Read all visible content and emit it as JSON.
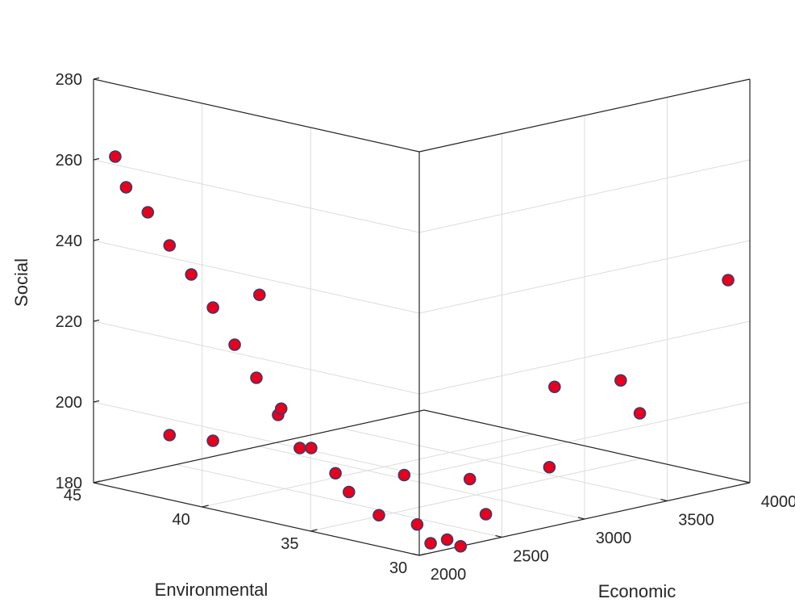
{
  "chart_data": {
    "type": "scatter",
    "projection": "3d",
    "title": "",
    "xlabel": "Economic",
    "ylabel": "Environmental",
    "zlabel": "Social",
    "x_ticks": [
      "2000",
      "2500",
      "3000",
      "3500",
      "4000"
    ],
    "y_ticks": [
      "30",
      "35",
      "40",
      "45"
    ],
    "z_ticks": [
      "180",
      "200",
      "220",
      "240",
      "260",
      "280"
    ],
    "xlim": [
      2000,
      4000
    ],
    "ylim": [
      30,
      45
    ],
    "zlim": [
      180,
      280
    ],
    "grid": true,
    "marker_color": "#e8001c",
    "marker_edge": "#3b3b6b",
    "points": [
      {
        "x": 2000,
        "y": 44,
        "z": 262
      },
      {
        "x": 2000,
        "y": 43.5,
        "z": 255
      },
      {
        "x": 2000,
        "y": 42.5,
        "z": 250
      },
      {
        "x": 2000,
        "y": 41.5,
        "z": 243
      },
      {
        "x": 2000,
        "y": 40.5,
        "z": 237
      },
      {
        "x": 2000,
        "y": 39.5,
        "z": 230
      },
      {
        "x": 2000,
        "y": 38.5,
        "z": 222
      },
      {
        "x": 2000,
        "y": 37.5,
        "z": 215
      },
      {
        "x": 2000,
        "y": 36.5,
        "z": 207
      },
      {
        "x": 2000,
        "y": 35.5,
        "z": 200
      },
      {
        "x": 2000,
        "y": 41.5,
        "z": 196
      },
      {
        "x": 2000,
        "y": 39.5,
        "z": 197
      },
      {
        "x": 2150,
        "y": 38.5,
        "z": 233
      },
      {
        "x": 2150,
        "y": 37.5,
        "z": 206
      },
      {
        "x": 2200,
        "y": 36.5,
        "z": 197
      },
      {
        "x": 2150,
        "y": 35,
        "z": 193
      },
      {
        "x": 2100,
        "y": 34,
        "z": 190
      },
      {
        "x": 2150,
        "y": 33,
        "z": 185
      },
      {
        "x": 2500,
        "y": 34.5,
        "z": 190
      },
      {
        "x": 2700,
        "y": 33,
        "z": 189
      },
      {
        "x": 2250,
        "y": 32,
        "z": 183
      },
      {
        "x": 2200,
        "y": 31,
        "z": 180
      },
      {
        "x": 2300,
        "y": 31,
        "z": 180
      },
      {
        "x": 2250,
        "y": 30,
        "z": 180
      },
      {
        "x": 2600,
        "y": 31.5,
        "z": 183
      },
      {
        "x": 3050,
        "y": 32,
        "z": 190
      },
      {
        "x": 2950,
        "y": 31,
        "z": 212
      },
      {
        "x": 3350,
        "y": 31,
        "z": 210
      },
      {
        "x": 3400,
        "y": 30.5,
        "z": 202
      },
      {
        "x": 4000,
        "y": 31,
        "z": 229
      }
    ]
  }
}
